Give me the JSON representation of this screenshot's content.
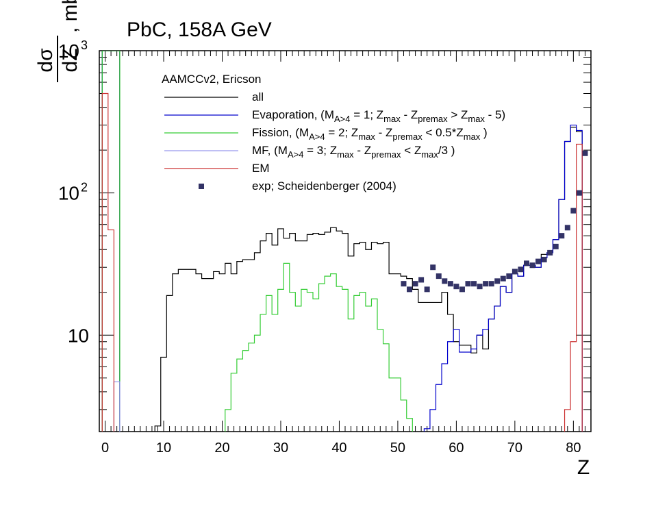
{
  "chart_data": {
    "type": "line",
    "title": "PbC, 158A GeV",
    "xlabel": "Z",
    "ylabel": "dσ/dZ, mb",
    "yscale": "log",
    "xlim": [
      -1,
      83
    ],
    "ylim": [
      2.1,
      1000
    ],
    "x_ticks": [
      "0",
      "10",
      "20",
      "30",
      "40",
      "50",
      "60",
      "70",
      "80"
    ],
    "y_ticks": [
      {
        "value": 10,
        "label": "10"
      },
      {
        "value": 100,
        "label": "10",
        "sup": "2"
      },
      {
        "value": 1000,
        "label": "10",
        "sup": "3"
      }
    ],
    "legend_header": "AAMCCv2, Ericson",
    "legend_placement": "top-left",
    "series": [
      {
        "name": "all",
        "color": "#000000",
        "style": "step",
        "bins": [
          [
            0,
            1000
          ],
          [
            1,
            1000
          ],
          [
            2,
            1000
          ],
          [
            9,
            2.3
          ],
          [
            10,
            7
          ],
          [
            11,
            19
          ],
          [
            12,
            27
          ],
          [
            13,
            29
          ],
          [
            14,
            29
          ],
          [
            15,
            29
          ],
          [
            16,
            27
          ],
          [
            17,
            25
          ],
          [
            18,
            25
          ],
          [
            19,
            28
          ],
          [
            20,
            27
          ],
          [
            21,
            32
          ],
          [
            22,
            27
          ],
          [
            23,
            33
          ],
          [
            24,
            34
          ],
          [
            25,
            34
          ],
          [
            26,
            38
          ],
          [
            27,
            46
          ],
          [
            28,
            52
          ],
          [
            29,
            43
          ],
          [
            30,
            56
          ],
          [
            31,
            48
          ],
          [
            32,
            52
          ],
          [
            33,
            46
          ],
          [
            34,
            46
          ],
          [
            35,
            51
          ],
          [
            36,
            52
          ],
          [
            37,
            51
          ],
          [
            38,
            53
          ],
          [
            39,
            57
          ],
          [
            40,
            54
          ],
          [
            41,
            52
          ],
          [
            42,
            36
          ],
          [
            43,
            44
          ],
          [
            44,
            45
          ],
          [
            45,
            40
          ],
          [
            46,
            45
          ],
          [
            47,
            44
          ],
          [
            48,
            45
          ],
          [
            49,
            27
          ],
          [
            50,
            27
          ],
          [
            51,
            26
          ],
          [
            52,
            25
          ],
          [
            53,
            21
          ],
          [
            54,
            17
          ],
          [
            55,
            17
          ],
          [
            56,
            17
          ],
          [
            57,
            17
          ],
          [
            58,
            20
          ],
          [
            59,
            14
          ],
          [
            60,
            9
          ],
          [
            61,
            8.5
          ],
          [
            62,
            8.5
          ],
          [
            63,
            7.5
          ],
          [
            64,
            10
          ],
          [
            65,
            8
          ],
          [
            66,
            13
          ],
          [
            67,
            16
          ],
          [
            68,
            22
          ],
          [
            69,
            20
          ],
          [
            70,
            27
          ],
          [
            71,
            26
          ],
          [
            72,
            31
          ],
          [
            73,
            31
          ],
          [
            74,
            30
          ],
          [
            75,
            37
          ],
          [
            76,
            38
          ],
          [
            77,
            47
          ],
          [
            78,
            90
          ],
          [
            79,
            230
          ],
          [
            80,
            290
          ],
          [
            81,
            270
          ]
        ]
      },
      {
        "name": "Evaporation, (MA>4 = 1; Zmax - Zpremax > Zmax - 5)",
        "color": "#0000cc",
        "style": "step",
        "bins": [
          [
            0,
            1000
          ],
          [
            1,
            1000
          ],
          [
            2,
            1000
          ],
          [
            55,
            2.2
          ],
          [
            56,
            3
          ],
          [
            57,
            4.5
          ],
          [
            58,
            6.3
          ],
          [
            59,
            9
          ],
          [
            60,
            11
          ],
          [
            61,
            7.6
          ],
          [
            62,
            7.6
          ],
          [
            63,
            8
          ],
          [
            64,
            10
          ],
          [
            65,
            11
          ],
          [
            66,
            13
          ],
          [
            67,
            16
          ],
          [
            68,
            22
          ],
          [
            69,
            20
          ],
          [
            70,
            27
          ],
          [
            71,
            26
          ],
          [
            72,
            31
          ],
          [
            73,
            31
          ],
          [
            74,
            30
          ],
          [
            75,
            35
          ],
          [
            76,
            38
          ],
          [
            77,
            47
          ],
          [
            78,
            90
          ],
          [
            79,
            230
          ],
          [
            80,
            300
          ],
          [
            81,
            275
          ]
        ]
      },
      {
        "name": "Fission, (MA>4 = 2; Zmax - Zpremax < 0.5*Zmax )",
        "color": "#33cc33",
        "style": "step",
        "bins": [
          [
            0,
            1000
          ],
          [
            1,
            1000
          ],
          [
            2,
            1000
          ],
          [
            21,
            3
          ],
          [
            22,
            5.4
          ],
          [
            23,
            6.8
          ],
          [
            24,
            7.8
          ],
          [
            25,
            8.8
          ],
          [
            26,
            10
          ],
          [
            27,
            14
          ],
          [
            28,
            19
          ],
          [
            29,
            14
          ],
          [
            30,
            21
          ],
          [
            31,
            32
          ],
          [
            32,
            20
          ],
          [
            33,
            16
          ],
          [
            34,
            21
          ],
          [
            35,
            20
          ],
          [
            36,
            18
          ],
          [
            37,
            23
          ],
          [
            38,
            26
          ],
          [
            39,
            27
          ],
          [
            40,
            22
          ],
          [
            41,
            21
          ],
          [
            42,
            13
          ],
          [
            43,
            19
          ],
          [
            44,
            20
          ],
          [
            45,
            16
          ],
          [
            46,
            18
          ],
          [
            47,
            11
          ],
          [
            48,
            8.7
          ],
          [
            49,
            5
          ],
          [
            50,
            5
          ],
          [
            51,
            3.5
          ],
          [
            52,
            2.6
          ]
        ]
      },
      {
        "name": "MF, (MA>4 = 3; Zmax - Zpremax < Zmax/3 )",
        "color": "#9999ee",
        "style": "step",
        "bins": [
          [
            2,
            4.7
          ]
        ]
      },
      {
        "name": "EM",
        "color": "#cc3333",
        "style": "step",
        "bins": [
          [
            0,
            500
          ],
          [
            1,
            55
          ],
          [
            79,
            3
          ],
          [
            80,
            9
          ],
          [
            81,
            220
          ]
        ]
      },
      {
        "name": "exp; Scheidenberger (2004)",
        "color": "#333366",
        "style": "markers",
        "points": [
          [
            51,
            23
          ],
          [
            52,
            21
          ],
          [
            53,
            23
          ],
          [
            54,
            24.5
          ],
          [
            55,
            21
          ],
          [
            56,
            30
          ],
          [
            57,
            26
          ],
          [
            58,
            24
          ],
          [
            59,
            23
          ],
          [
            60,
            22
          ],
          [
            61,
            21
          ],
          [
            62,
            23
          ],
          [
            63,
            23
          ],
          [
            64,
            22
          ],
          [
            65,
            23
          ],
          [
            66,
            23
          ],
          [
            67,
            24
          ],
          [
            68,
            25
          ],
          [
            69,
            26
          ],
          [
            70,
            28
          ],
          [
            71,
            29
          ],
          [
            72,
            32
          ],
          [
            73,
            31
          ],
          [
            74,
            33
          ],
          [
            75,
            34
          ],
          [
            76,
            38
          ],
          [
            77,
            42
          ],
          [
            78,
            50
          ],
          [
            79,
            57
          ],
          [
            80,
            75
          ],
          [
            81,
            100
          ],
          [
            82,
            190
          ]
        ]
      }
    ]
  }
}
